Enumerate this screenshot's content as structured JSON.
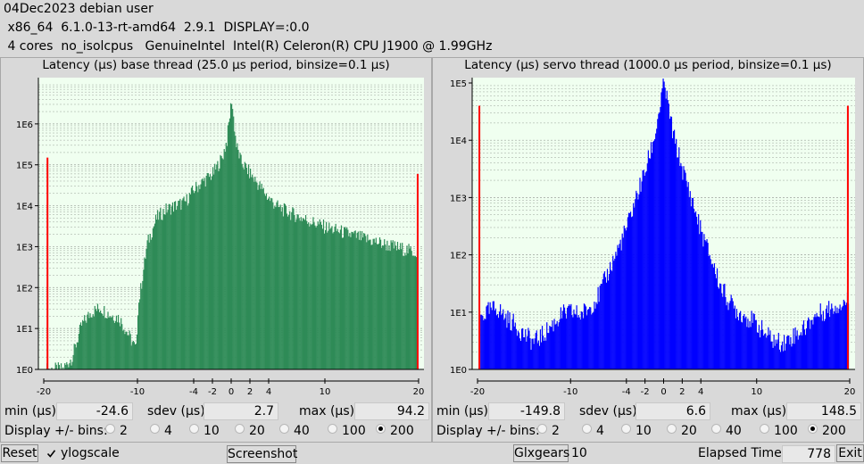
{
  "header": {
    "line1": "04Dec2023 debian user",
    "line2": " x86_64  6.1.0-13-rt-amd64  2.9.1  DISPLAY=:0.0",
    "line3": " 4 cores  no_isolcpus   GenuineIntel  Intel(R) Celeron(R) CPU J1900 @ 1.99GHz"
  },
  "colors": {
    "base_bars": "#2e8b57",
    "servo_bars": "#0000ff",
    "plot_bg": "#f0fff0",
    "limit_line": "#ff0000",
    "gridline": "#9aa39a"
  },
  "base": {
    "title": "Latency (µs) base thread (25.0 µs period, binsize=0.1 µs)",
    "min_label": "min (µs)",
    "min": "-24.6",
    "sdev_label": "sdev (µs)",
    "sdev": "2.7",
    "max_label": "max (µs)",
    "max": "94.2"
  },
  "servo": {
    "title": "Latency (µs) servo thread (1000.0 µs period, binsize=0.1 µs)",
    "min_label": "min (µs)",
    "min": "-149.8",
    "sdev_label": "sdev (µs)",
    "sdev": "6.6",
    "max_label": "max (µs)",
    "max": "148.5"
  },
  "display_bins_label": "Display +/- bins:",
  "bin_options": [
    "2",
    "4",
    "10",
    "20",
    "40",
    "100",
    "200"
  ],
  "selected_bins": "200",
  "bottom": {
    "reset": "Reset",
    "ylogscale": "ylogscale",
    "ylogscale_checked": true,
    "screenshot": "Screenshot",
    "glxgears": "Glxgears",
    "glxgears_value": "10",
    "elapsed_label": "Elapsed Time:",
    "elapsed": "778",
    "exit": "Exit"
  },
  "chart_data": [
    {
      "type": "bar",
      "title": "Latency (µs) base thread (25.0 µs period, binsize=0.1 µs)",
      "xlim": [
        -20,
        20
      ],
      "yscale": "log",
      "ylim": [
        1,
        10000000
      ],
      "x_ticks": [
        "-20",
        "-10",
        "-4",
        "-2",
        "0",
        "2",
        "4",
        "10",
        "20"
      ],
      "y_ticks": [
        "1E0",
        "1E1",
        "1E2",
        "1E3",
        "1E4",
        "1E5",
        "1E6"
      ],
      "x": [
        -19.6,
        -19,
        -18,
        -17,
        -16,
        -15,
        -14,
        -13,
        -12,
        -11,
        -10.2,
        -10,
        -9,
        -8,
        -7,
        -6,
        -5,
        -4,
        -3,
        -2,
        -1,
        -0.5,
        0,
        0.5,
        1,
        2,
        3,
        4,
        5,
        6,
        8,
        10,
        12,
        14,
        16,
        18,
        19.9
      ],
      "values": [
        1,
        1,
        1,
        2,
        12,
        25,
        32,
        22,
        18,
        7,
        3,
        30,
        1200,
        5000,
        8000,
        10000,
        12000,
        25000,
        40000,
        60000,
        150000,
        400000,
        4000000,
        300000,
        120000,
        60000,
        30000,
        15000,
        9000,
        7000,
        4500,
        3000,
        2200,
        1600,
        1200,
        900,
        700
      ],
      "edge_spikes": [
        {
          "x": -19.6,
          "value": 150000
        },
        {
          "x": 19.9,
          "value": 60000
        }
      ]
    },
    {
      "type": "bar",
      "title": "Latency (µs) servo thread (1000.0 µs period, binsize=0.1 µs)",
      "xlim": [
        -20,
        20
      ],
      "yscale": "log",
      "ylim": [
        1,
        100000
      ],
      "x_ticks": [
        "-20",
        "-10",
        "-4",
        "-2",
        "0",
        "2",
        "4",
        "10",
        "20"
      ],
      "y_ticks": [
        "1E0",
        "1E1",
        "1E2",
        "1E3",
        "1E4",
        "1E5"
      ],
      "x": [
        -19.8,
        -19,
        -18,
        -17,
        -16,
        -15,
        -14,
        -13,
        -12,
        -11,
        -10,
        -9,
        -8,
        -7,
        -6,
        -5,
        -4,
        -3,
        -2,
        -1,
        0,
        1,
        2,
        3,
        4,
        5,
        6,
        7,
        8,
        9,
        10,
        11,
        12,
        13,
        14,
        15,
        16,
        17,
        18,
        19,
        19.8
      ],
      "values": [
        8,
        10,
        12,
        8,
        6,
        4,
        3,
        4,
        6,
        9,
        10,
        9,
        12,
        20,
        50,
        120,
        300,
        1000,
        3000,
        12000,
        100000,
        12000,
        3000,
        900,
        250,
        90,
        30,
        15,
        10,
        8,
        6,
        4,
        3,
        3,
        4,
        5,
        8,
        10,
        12,
        14,
        16
      ],
      "edge_spikes": [
        {
          "x": -19.8,
          "value": 40000
        },
        {
          "x": 19.8,
          "value": 40000
        }
      ]
    }
  ]
}
